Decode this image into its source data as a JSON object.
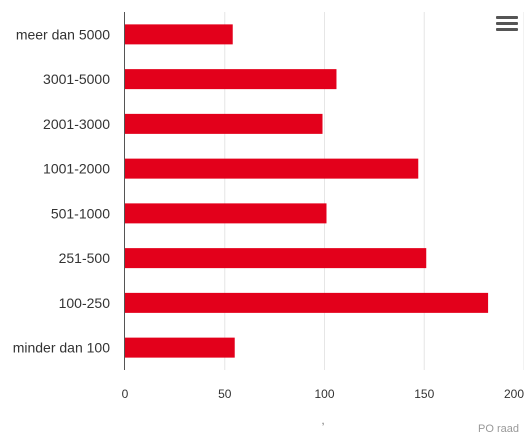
{
  "chart_data": {
    "type": "bar",
    "orientation": "horizontal",
    "categories": [
      "meer dan 5000",
      "3001-5000",
      "2001-3000",
      "1001-2000",
      "501-1000",
      "251-500",
      "100-250",
      "minder dan 100"
    ],
    "values": [
      54,
      106,
      99,
      147,
      101,
      151,
      182,
      55
    ],
    "xlim": [
      0,
      200
    ],
    "xticks": [
      "0",
      "50",
      "100",
      "150",
      "200"
    ],
    "xlabel": ",",
    "ylabel": "",
    "grid": true,
    "legend": "none",
    "bar_color": "#e3001b",
    "credit": "PO raad"
  },
  "menu": {
    "icon": "hamburger-menu-icon"
  }
}
